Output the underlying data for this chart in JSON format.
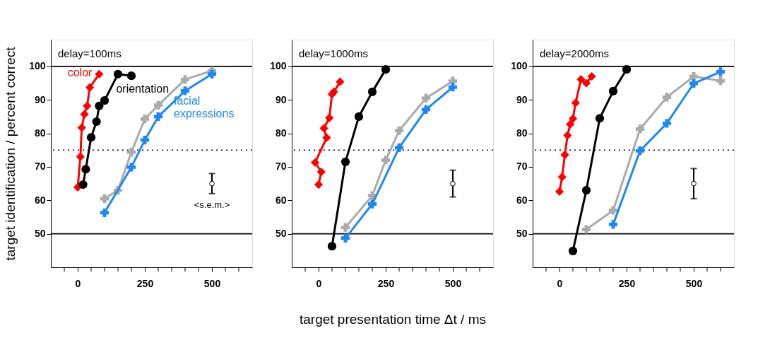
{
  "chart_data": [
    {
      "type": "line",
      "title": "delay=100ms",
      "ylabel": "target identification / percent correct",
      "xlim": [
        -100,
        650
      ],
      "ylim": [
        40,
        108
      ],
      "xticks": [
        {
          "value": -50,
          "label": null
        },
        0,
        {
          "value": 50,
          "label": null
        },
        {
          "value": 100,
          "label": null
        },
        {
          "value": 150,
          "label": null
        },
        {
          "value": 200,
          "label": null
        },
        250,
        {
          "value": 300,
          "label": null
        },
        {
          "value": 350,
          "label": null
        },
        {
          "value": 400,
          "label": null
        },
        {
          "value": 450,
          "label": null
        },
        500,
        {
          "value": 550,
          "label": null
        },
        {
          "value": 600,
          "label": null
        }
      ],
      "yticks": [
        50,
        60,
        70,
        80,
        90,
        100
      ],
      "grid": false,
      "legend": false,
      "ref_lines": [
        {
          "axis": "y",
          "value": 100,
          "line_style": "solid",
          "color": "#000000"
        },
        {
          "axis": "y",
          "value": 75,
          "line_style": "dotted",
          "color": "#000000"
        },
        {
          "axis": "y",
          "value": 50,
          "line_style": "solid",
          "color": "#000000"
        }
      ],
      "annotations": [
        "<s.e.m.>"
      ],
      "series": [
        {
          "name": "color",
          "type": "line",
          "marker": "diamond",
          "color": "#ff0000",
          "x": [
            0,
            10,
            15,
            25,
            35,
            45,
            80
          ],
          "values": [
            63.9,
            73,
            81.7,
            85.7,
            88.2,
            93.7,
            97.7
          ]
        },
        {
          "name": "orientation",
          "type": "line",
          "marker": "circle",
          "color": "#000000",
          "x": [
            20,
            30,
            50,
            70,
            80,
            100,
            150,
            200
          ],
          "values": [
            64.7,
            69.3,
            78.8,
            83.5,
            88.2,
            89.8,
            97.7,
            97.2
          ]
        },
        {
          "type": "line",
          "marker": "cross",
          "color": "#aaaaaa",
          "x": [
            100,
            150,
            200,
            250,
            300,
            400,
            500
          ],
          "values": [
            60.5,
            63,
            74.4,
            84.3,
            88.4,
            96.1,
            98.7
          ]
        },
        {
          "name": "facial expressions",
          "type": "line",
          "marker": "cross",
          "color": "#1e88f0",
          "x": [
            100,
            200,
            250,
            300,
            400,
            500
          ],
          "values": [
            56.3,
            69.9,
            78,
            85,
            92.7,
            97.7
          ]
        },
        {
          "type": "scatter",
          "marker": "circle",
          "color": "#000000",
          "x": [
            500
          ],
          "values": [
            65
          ],
          "errors": [
            3
          ]
        }
      ]
    },
    {
      "type": "line",
      "title": "delay=1000ms",
      "xlabel": "target presentation time Δt / ms",
      "xlim": [
        -100,
        650
      ],
      "ylim": [
        40,
        108
      ],
      "xticks": [
        {
          "value": -50,
          "label": null
        },
        0,
        {
          "value": 50,
          "label": null
        },
        {
          "value": 100,
          "label": null
        },
        {
          "value": 150,
          "label": null
        },
        {
          "value": 200,
          "label": null
        },
        250,
        {
          "value": 300,
          "label": null
        },
        {
          "value": 350,
          "label": null
        },
        {
          "value": 400,
          "label": null
        },
        {
          "value": 450,
          "label": null
        },
        500,
        {
          "value": 550,
          "label": null
        },
        {
          "value": 600,
          "label": null
        }
      ],
      "yticks": [
        50,
        60,
        70,
        80,
        90,
        100
      ],
      "grid": false,
      "legend": false,
      "ref_lines": [
        {
          "axis": "y",
          "value": 100,
          "line_style": "solid",
          "color": "#000000"
        },
        {
          "axis": "y",
          "value": 75,
          "line_style": "dotted",
          "color": "#000000"
        },
        {
          "axis": "y",
          "value": 50,
          "line_style": "solid",
          "color": "#000000"
        }
      ],
      "series": [
        {
          "type": "line",
          "marker": "diamond",
          "color": "#ff0000",
          "x": [
            0,
            10,
            -13,
            30,
            20,
            40,
            50,
            57,
            80
          ],
          "values": [
            64.7,
            68.5,
            71.3,
            78.7,
            81.5,
            84.6,
            91.7,
            92.4,
            95.4
          ]
        },
        {
          "type": "line",
          "marker": "circle",
          "color": "#000000",
          "x": [
            50,
            100,
            150,
            200,
            250
          ],
          "values": [
            46.3,
            71.5,
            85,
            92.4,
            99.1
          ]
        },
        {
          "type": "line",
          "marker": "cross",
          "color": "#aaaaaa",
          "x": [
            100,
            200,
            250,
            300,
            400,
            500
          ],
          "values": [
            51.9,
            61.4,
            72,
            80.8,
            90.5,
            95.6
          ]
        },
        {
          "type": "line",
          "marker": "cross",
          "color": "#1e88f0",
          "x": [
            100,
            200,
            300,
            400,
            500
          ],
          "values": [
            48.7,
            58.9,
            75.7,
            87.1,
            93.8
          ]
        },
        {
          "type": "scatter",
          "marker": "circle",
          "color": "#000000",
          "x": [
            500
          ],
          "values": [
            65
          ],
          "errors": [
            4
          ]
        }
      ]
    },
    {
      "type": "line",
      "title": "delay=2000ms",
      "xlim": [
        -100,
        650
      ],
      "ylim": [
        40,
        108
      ],
      "xticks": [
        {
          "value": -50,
          "label": null
        },
        0,
        {
          "value": 50,
          "label": null
        },
        {
          "value": 100,
          "label": null
        },
        {
          "value": 150,
          "label": null
        },
        {
          "value": 200,
          "label": null
        },
        250,
        {
          "value": 300,
          "label": null
        },
        {
          "value": 350,
          "label": null
        },
        {
          "value": 400,
          "label": null
        },
        {
          "value": 450,
          "label": null
        },
        500,
        {
          "value": 550,
          "label": null
        },
        {
          "value": 600,
          "label": null
        }
      ],
      "yticks": [
        50,
        60,
        70,
        80,
        90,
        100
      ],
      "grid": false,
      "legend": false,
      "ref_lines": [
        {
          "axis": "y",
          "value": 100,
          "line_style": "solid",
          "color": "#000000"
        },
        {
          "axis": "y",
          "value": 75,
          "line_style": "dotted",
          "color": "#000000"
        },
        {
          "axis": "y",
          "value": 50,
          "line_style": "solid",
          "color": "#000000"
        }
      ],
      "series": [
        {
          "type": "line",
          "marker": "diamond",
          "color": "#ff0000",
          "x": [
            0,
            10,
            20,
            30,
            40,
            50,
            60,
            80,
            100,
            120
          ],
          "values": [
            62.6,
            67,
            73.6,
            79.4,
            82.7,
            84.4,
            89.1,
            96.1,
            95,
            97
          ]
        },
        {
          "type": "line",
          "marker": "circle",
          "color": "#000000",
          "x": [
            50,
            100,
            150,
            200,
            250
          ],
          "values": [
            44.9,
            63,
            84.5,
            92.6,
            99.1
          ]
        },
        {
          "type": "line",
          "marker": "cross",
          "color": "#aaaaaa",
          "x": [
            100,
            200,
            300,
            400,
            500,
            600
          ],
          "values": [
            51.3,
            57,
            81.3,
            90.8,
            97,
            95.7
          ]
        },
        {
          "type": "line",
          "marker": "cross",
          "color": "#1e88f0",
          "x": [
            200,
            300,
            400,
            500,
            600
          ],
          "values": [
            52.8,
            74.8,
            83,
            94.9,
            98.4
          ]
        },
        {
          "type": "scatter",
          "marker": "circle",
          "color": "#000000",
          "x": [
            500
          ],
          "values": [
            65
          ],
          "errors": [
            4.5
          ]
        }
      ]
    }
  ]
}
